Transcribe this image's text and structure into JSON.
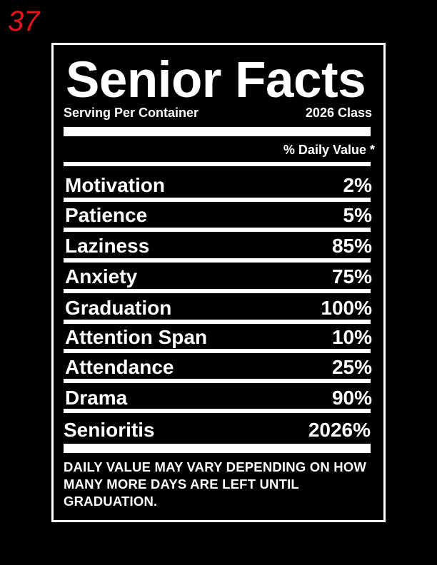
{
  "page_number": "37",
  "title": "Senior Facts",
  "serving": "Serving Per Container",
  "class_label": "2026 Class",
  "daily_value_header": "% Daily Value *",
  "rows": [
    {
      "label": "Motivation",
      "value": "2%"
    },
    {
      "label": "Patience",
      "value": "5%"
    },
    {
      "label": "Laziness",
      "value": "85%"
    },
    {
      "label": "Anxiety",
      "value": "75%"
    },
    {
      "label": "Graduation",
      "value": "100%"
    },
    {
      "label": "Attention Span",
      "value": "10%"
    },
    {
      "label": "Attendance",
      "value": "25%"
    },
    {
      "label": "Drama",
      "value": "90%"
    }
  ],
  "total": {
    "label": "Senioritis",
    "value": "2026%"
  },
  "footnote": "DAILY VALUE MAY VARY DEPENDING ON HOW MANY MORE DAYS ARE LEFT UNTIL GRADUATION.",
  "colors": {
    "background": "#000000",
    "text": "#ffffff",
    "page_number": "#e8141b"
  }
}
